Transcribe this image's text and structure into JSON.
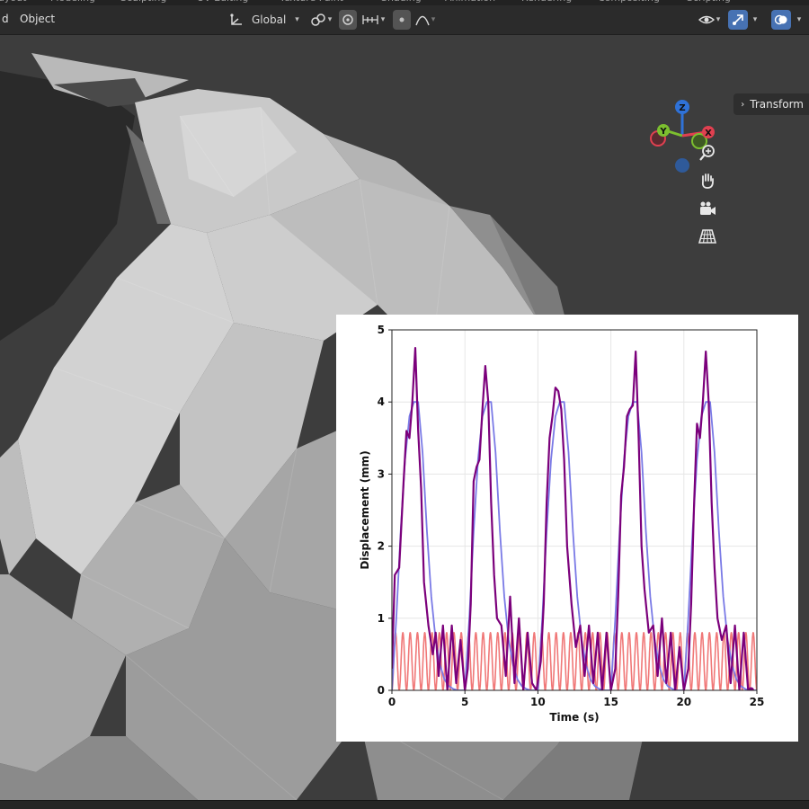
{
  "header": {
    "menu": [
      {
        "label": "d"
      },
      {
        "label": "Object"
      }
    ],
    "transform_orientation": "Global",
    "workspace_tabs": [
      "Layout",
      "Modeling",
      "Sculpting",
      "UV Editing",
      "Texture Paint",
      "Shading",
      "Animation",
      "Rendering",
      "Compositing",
      "Scripting"
    ]
  },
  "sidebar": {
    "transform_tab_label": "Transform"
  },
  "gizmo": {
    "axes": [
      {
        "label": "Z",
        "color": "#2f72d8"
      },
      {
        "label": "Y",
        "color": "#7cbf2f"
      },
      {
        "label": "X",
        "color": "#e04050"
      }
    ]
  },
  "nav_buttons": [
    {
      "icon": "zoom-icon"
    },
    {
      "icon": "hand-pan-icon"
    },
    {
      "icon": "camera-icon"
    },
    {
      "icon": "grid-perspective-icon"
    }
  ],
  "chart_data": {
    "type": "line",
    "title": "",
    "xlabel": "Time (s)",
    "ylabel": "Displacement (mm)",
    "xlim": [
      0,
      25
    ],
    "ylim": [
      0,
      5
    ],
    "xticks": [
      0,
      5,
      10,
      15,
      20,
      25
    ],
    "yticks": [
      0,
      1,
      2,
      3,
      4,
      5
    ],
    "grid": true,
    "legend": "none",
    "series": [
      {
        "color": "#7b007b",
        "kind": "combined",
        "x": [
          0,
          0.2,
          0.5,
          0.8,
          1.0,
          1.2,
          1.4,
          1.6,
          1.8,
          2.0,
          2.2,
          2.5,
          2.8,
          3.0,
          3.2,
          3.5,
          3.8,
          4.1,
          4.4,
          4.7,
          5.0,
          5.2,
          5.4,
          5.6,
          5.8,
          6.0,
          6.2,
          6.4,
          6.6,
          6.8,
          7.0,
          7.2,
          7.5,
          7.8,
          8.1,
          8.4,
          8.7,
          9.0,
          9.3,
          9.6,
          9.9,
          10.2,
          10.4,
          10.6,
          10.8,
          11.0,
          11.2,
          11.4,
          11.6,
          11.8,
          12.0,
          12.3,
          12.6,
          12.9,
          13.2,
          13.5,
          13.8,
          14.1,
          14.4,
          14.7,
          15.0,
          15.3,
          15.5,
          15.7,
          15.9,
          16.1,
          16.3,
          16.5,
          16.7,
          16.9,
          17.1,
          17.3,
          17.6,
          17.9,
          18.2,
          18.5,
          18.8,
          19.1,
          19.4,
          19.7,
          20.0,
          20.3,
          20.5,
          20.7,
          20.9,
          21.1,
          21.3,
          21.5,
          21.7,
          21.9,
          22.1,
          22.3,
          22.6,
          22.9,
          23.2,
          23.5,
          23.8,
          24.1,
          24.4,
          24.6
        ],
        "y": [
          0.3,
          1.6,
          1.7,
          2.9,
          3.6,
          3.5,
          4.0,
          4.75,
          3.6,
          2.8,
          1.5,
          0.9,
          0.5,
          0.8,
          0.2,
          0.9,
          0.0,
          0.9,
          0.1,
          0.7,
          0.0,
          0.3,
          1.2,
          2.9,
          3.1,
          3.2,
          3.9,
          4.5,
          4.0,
          2.6,
          1.6,
          1.0,
          0.9,
          0.2,
          1.3,
          0.1,
          1.0,
          0.0,
          0.8,
          0.1,
          0.0,
          0.4,
          1.2,
          2.6,
          3.5,
          3.8,
          4.2,
          4.15,
          3.9,
          3.2,
          2.0,
          1.2,
          0.6,
          0.9,
          0.2,
          0.9,
          0.1,
          0.8,
          0.0,
          0.8,
          0.0,
          0.3,
          1.3,
          2.7,
          3.1,
          3.8,
          3.9,
          3.95,
          4.7,
          3.5,
          2.0,
          1.4,
          0.8,
          0.9,
          0.2,
          1.0,
          0.1,
          0.8,
          0.0,
          0.6,
          0.0,
          0.3,
          1.2,
          2.6,
          3.7,
          3.5,
          4.0,
          4.7,
          4.0,
          2.6,
          1.7,
          1.0,
          0.7,
          0.9,
          0.1,
          0.9,
          0.0,
          0.8,
          0.0,
          0.0
        ]
      },
      {
        "color": "#7a7ae6",
        "kind": "envelope",
        "x": [
          0,
          0.3,
          0.6,
          0.9,
          1.2,
          1.5,
          1.8,
          2.1,
          2.4,
          2.7,
          3.0,
          3.3,
          3.6,
          3.9,
          4.2,
          4.5,
          4.8,
          5.0
        ],
        "y": [
          0,
          1.0,
          2.2,
          3.2,
          3.8,
          4.0,
          4.0,
          3.3,
          2.2,
          1.3,
          0.7,
          0.35,
          0.15,
          0.06,
          0.02,
          0.0,
          0.0,
          0.0
        ],
        "period": 5
      },
      {
        "color": "#f07878",
        "kind": "oscillation",
        "amplitude": 0.4,
        "offset": 0.4,
        "frequency_hz": 2.0
      }
    ]
  }
}
